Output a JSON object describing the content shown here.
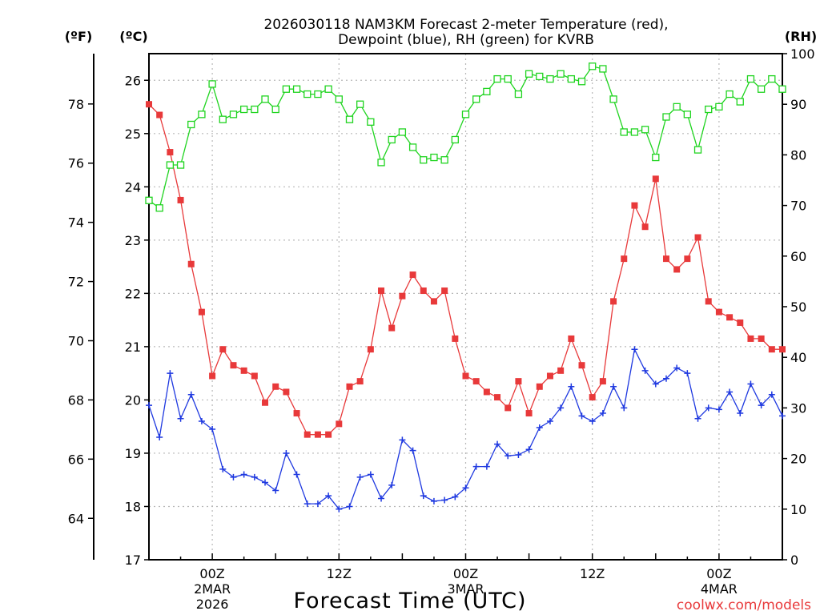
{
  "chart_data": {
    "type": "line",
    "title": "2026030118 NAM3KM Forecast 2-meter Temperature (red),",
    "subtitle": "Dewpoint (blue), RH (green) for KVRB",
    "xlabel": "Forecast Time (UTC)",
    "unit_f": "(ºF)",
    "unit_c": "(ºC)",
    "unit_rh": "(RH)",
    "credit": "coolwx.com/models",
    "x_range_hours": [
      -6,
      54
    ],
    "c_range": [
      17,
      26.5
    ],
    "rh_range": [
      0,
      100
    ],
    "f_ticks": [
      64,
      66,
      68,
      70,
      72,
      74,
      76,
      78
    ],
    "c_ticks": [
      17,
      18,
      19,
      20,
      21,
      22,
      23,
      24,
      25,
      26
    ],
    "rh_ticks": [
      0,
      10,
      20,
      30,
      40,
      50,
      60,
      70,
      80,
      90,
      100
    ],
    "x_ticks": [
      {
        "hour": 0,
        "label": "00Z",
        "date": "2MAR",
        "year": "2026"
      },
      {
        "hour": 12,
        "label": "12Z",
        "date": "",
        "year": ""
      },
      {
        "hour": 24,
        "label": "00Z",
        "date": "3MAR",
        "year": ""
      },
      {
        "hour": 36,
        "label": "12Z",
        "date": "",
        "year": ""
      },
      {
        "hour": 48,
        "label": "00Z",
        "date": "4MAR",
        "year": ""
      }
    ],
    "x_hours": [
      -6,
      -5,
      -4,
      -3,
      -2,
      -1,
      0,
      1,
      2,
      3,
      4,
      5,
      6,
      7,
      8,
      9,
      10,
      11,
      12,
      13,
      14,
      15,
      16,
      17,
      18,
      19,
      20,
      21,
      22,
      23,
      24,
      25,
      26,
      27,
      28,
      29,
      30,
      31,
      32,
      33,
      34,
      35,
      36,
      37,
      38,
      39,
      40,
      41,
      42,
      43,
      44,
      45,
      46,
      47,
      48,
      49,
      50,
      51,
      52,
      53,
      54
    ],
    "series": [
      {
        "name": "Temperature",
        "color": "#e8393a",
        "marker": "filled-square",
        "axis": "celsius",
        "values": [
          25.55,
          25.35,
          24.65,
          23.75,
          22.55,
          21.65,
          20.45,
          20.95,
          20.65,
          20.55,
          20.45,
          19.95,
          20.25,
          20.15,
          19.75,
          19.35,
          19.35,
          19.35,
          19.55,
          20.25,
          20.35,
          20.95,
          22.05,
          21.35,
          21.95,
          22.35,
          22.05,
          21.85,
          22.05,
          21.15,
          20.45,
          20.35,
          20.15,
          20.05,
          19.85,
          20.35,
          19.75,
          20.25,
          20.45,
          20.55,
          21.15,
          20.65,
          20.05,
          20.35,
          21.85,
          22.65,
          23.65,
          23.25,
          24.15,
          22.65,
          22.45,
          22.65,
          23.05,
          21.85,
          21.65,
          21.55,
          21.45,
          21.15,
          21.15,
          20.95,
          20.95
        ]
      },
      {
        "name": "Dewpoint",
        "color": "#1f39e0",
        "marker": "plus",
        "axis": "celsius",
        "values": [
          19.9,
          19.3,
          20.5,
          19.65,
          20.1,
          19.6,
          19.45,
          18.7,
          18.55,
          18.6,
          18.55,
          18.45,
          18.3,
          19.0,
          18.6,
          18.05,
          18.05,
          18.2,
          17.95,
          18.0,
          18.55,
          18.6,
          18.15,
          18.4,
          19.25,
          19.05,
          18.2,
          18.1,
          18.12,
          18.18,
          18.35,
          18.75,
          18.75,
          19.17,
          18.95,
          18.97,
          19.07,
          19.48,
          19.6,
          19.85,
          20.25,
          19.7,
          19.6,
          19.75,
          20.25,
          19.85,
          20.95,
          20.55,
          20.3,
          20.4,
          20.6,
          20.5,
          19.65,
          19.85,
          19.82,
          20.15,
          19.75,
          20.3,
          19.9,
          20.1,
          19.7
        ]
      },
      {
        "name": "RH",
        "color": "#1fd41f",
        "marker": "open-square",
        "axis": "rh",
        "values": [
          71,
          69.5,
          78,
          78,
          86,
          88,
          94,
          87,
          88,
          89,
          89,
          91,
          89,
          93,
          93,
          92,
          92,
          93,
          91,
          87,
          90,
          86.5,
          78.5,
          83,
          84.5,
          81.5,
          79,
          79.5,
          79,
          83,
          88,
          91,
          92.5,
          95,
          95,
          92,
          96,
          95.5,
          95,
          96,
          95,
          94.5,
          97.5,
          97,
          91,
          84.5,
          84.5,
          85,
          79.5,
          87.5,
          89.5,
          88,
          81,
          89,
          89.5,
          92,
          90.5,
          95,
          93,
          95,
          93
        ]
      }
    ]
  }
}
